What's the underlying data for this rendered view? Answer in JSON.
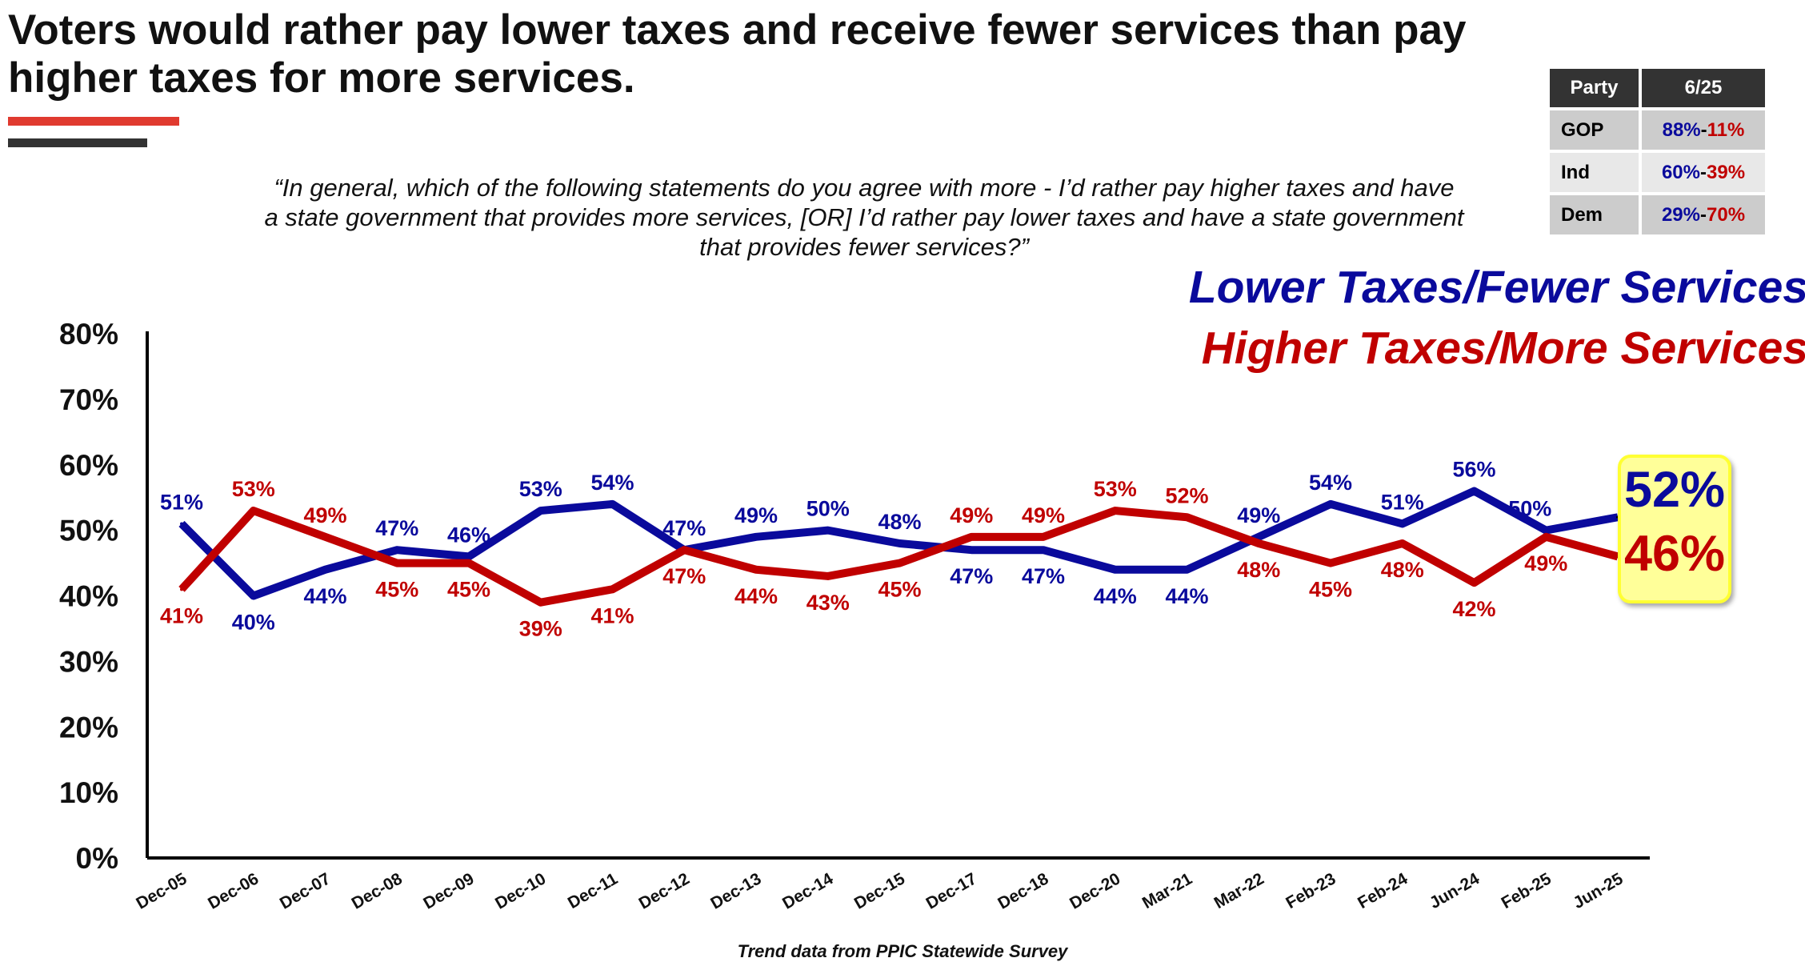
{
  "title": "Voters would rather pay lower taxes and receive fewer services than pay higher taxes for more services.",
  "question": "“In general, which of the following statements do you agree with more - I’d rather pay higher taxes and have a state government that provides more services, [OR] I’d rather pay lower taxes and have a state government that provides fewer services?”",
  "party_table": {
    "headers": [
      "Party",
      "6/25"
    ],
    "rows": [
      {
        "party": "GOP",
        "lower": "88%",
        "sep": "-",
        "higher": "11%"
      },
      {
        "party": "Ind",
        "lower": "60%",
        "sep": "-",
        "higher": "39%"
      },
      {
        "party": "Dem",
        "lower": "29%",
        "sep": "-",
        "higher": "70%"
      }
    ]
  },
  "callout": {
    "lower": "52%",
    "higher": "46%"
  },
  "footer": "Trend data from PPIC Statewide Survey",
  "colors": {
    "lower": "#0a0a9c",
    "higher": "#c00000"
  },
  "chart_data": {
    "type": "line",
    "title": "",
    "xlabel": "",
    "ylabel": "",
    "ylim": [
      0,
      80
    ],
    "yticks": [
      "0%",
      "10%",
      "20%",
      "30%",
      "40%",
      "50%",
      "60%",
      "70%",
      "80%"
    ],
    "legend_position": "top-right",
    "categories": [
      "Dec-05",
      "Dec-06",
      "Dec-07",
      "Dec-08",
      "Dec-09",
      "Dec-10",
      "Dec-11",
      "Dec-12",
      "Dec-13",
      "Dec-14",
      "Dec-15",
      "Dec-17",
      "Dec-18",
      "Dec-20",
      "Mar-21",
      "Mar-22",
      "Feb-23",
      "Feb-24",
      "Jun-24",
      "Feb-25",
      "Jun-25"
    ],
    "series": [
      {
        "name": "Lower Taxes/Fewer Services",
        "values": [
          51,
          40,
          44,
          47,
          46,
          53,
          54,
          47,
          49,
          50,
          48,
          47,
          47,
          44,
          44,
          49,
          54,
          51,
          56,
          50,
          52
        ]
      },
      {
        "name": "Higher Taxes/More Services",
        "values": [
          41,
          53,
          49,
          45,
          45,
          39,
          41,
          47,
          44,
          43,
          45,
          49,
          49,
          53,
          52,
          48,
          45,
          48,
          42,
          49,
          46
        ]
      }
    ]
  }
}
